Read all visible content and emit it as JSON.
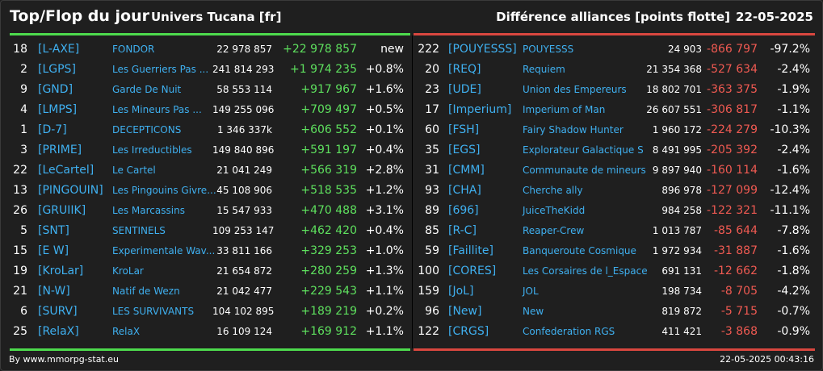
{
  "header": {
    "title": "Top/Flop du jour",
    "universe": "Univers Tucana [fr]",
    "ranking_label": "Différence alliances [points flotte]",
    "date": "22-05-2025"
  },
  "colors": {
    "positive": "#5ee05e",
    "negative": "#f05a52",
    "link": "#3fb0f0",
    "top_bar": "#4ddb4d",
    "flop_bar": "#d9473f",
    "background": "#1f1f1f"
  },
  "top": [
    {
      "rank": "18",
      "tag": "[L-AXE]",
      "name": "FONDOR",
      "score": "22 978 857",
      "diff": "+22 978 857",
      "pct": "new"
    },
    {
      "rank": "2",
      "tag": "[LGPS]",
      "name": "Les Guerriers Pas ...",
      "score": "241 814 293",
      "diff": "+1 974 235",
      "pct": "+0.8%"
    },
    {
      "rank": "9",
      "tag": "[GND]",
      "name": "Garde De Nuit",
      "score": "58 553 114",
      "diff": "+917 967",
      "pct": "+1.6%"
    },
    {
      "rank": "4",
      "tag": "[LMPS]",
      "name": "Les Mineurs Pas ...",
      "score": "149 255 096",
      "diff": "+709 497",
      "pct": "+0.5%"
    },
    {
      "rank": "1",
      "tag": "[D-7]",
      "name": "DECEPTICONS",
      "score": "1 346 337k",
      "diff": "+606 552",
      "pct": "+0.1%"
    },
    {
      "rank": "3",
      "tag": "[PRIME]",
      "name": "Les Irreductibles",
      "score": "149 840 896",
      "diff": "+591 197",
      "pct": "+0.4%"
    },
    {
      "rank": "22",
      "tag": "[LeCartel]",
      "name": "Le Cartel",
      "score": "21 041 249",
      "diff": "+566 319",
      "pct": "+2.8%"
    },
    {
      "rank": "13",
      "tag": "[PINGOUIN]",
      "name": "Les Pingouins Givre...",
      "score": "45 108 906",
      "diff": "+518 535",
      "pct": "+1.2%"
    },
    {
      "rank": "26",
      "tag": "[GRUIIK]",
      "name": "Les Marcassins",
      "score": "15 547 933",
      "diff": "+470 488",
      "pct": "+3.1%"
    },
    {
      "rank": "5",
      "tag": "[SNT]",
      "name": "SENTINELS",
      "score": "109 253 147",
      "diff": "+462 420",
      "pct": "+0.4%"
    },
    {
      "rank": "15",
      "tag": "[E W]",
      "name": "Experimentale Wav...",
      "score": "33 811 166",
      "diff": "+329 253",
      "pct": "+1.0%"
    },
    {
      "rank": "19",
      "tag": "[KroLar]",
      "name": "KroLar",
      "score": "21 654 872",
      "diff": "+280 259",
      "pct": "+1.3%"
    },
    {
      "rank": "21",
      "tag": "[N-W]",
      "name": "Natif de Wezn",
      "score": "21 042 477",
      "diff": "+229 543",
      "pct": "+1.1%"
    },
    {
      "rank": "6",
      "tag": "[SURV]",
      "name": "LES SURVIVANTS",
      "score": "104 102 895",
      "diff": "+189 219",
      "pct": "+0.2%"
    },
    {
      "rank": "25",
      "tag": "[RelaX]",
      "name": "RelaX",
      "score": "16 109 124",
      "diff": "+169 912",
      "pct": "+1.1%"
    }
  ],
  "flop": [
    {
      "rank": "222",
      "tag": "[POUYESSS]",
      "name": "POUYESSS",
      "score": "24 903",
      "diff": "-866 797",
      "pct": "-97.2%"
    },
    {
      "rank": "20",
      "tag": "[REQ]",
      "name": "Requiem",
      "score": "21 354 368",
      "diff": "-527 634",
      "pct": "-2.4%"
    },
    {
      "rank": "23",
      "tag": "[UDE]",
      "name": "Union des Empereurs",
      "score": "18 802 701",
      "diff": "-363 375",
      "pct": "-1.9%"
    },
    {
      "rank": "17",
      "tag": "[Imperium]",
      "name": "Imperium of Man",
      "score": "26 607 551",
      "diff": "-306 817",
      "pct": "-1.1%"
    },
    {
      "rank": "60",
      "tag": "[FSH]",
      "name": "Fairy Shadow Hunter",
      "score": "1 960 172",
      "diff": "-224 279",
      "pct": "-10.3%"
    },
    {
      "rank": "35",
      "tag": "[EGS]",
      "name": "Explorateur Galactique S",
      "score": "8 491 995",
      "diff": "-205 392",
      "pct": "-2.4%"
    },
    {
      "rank": "31",
      "tag": "[CMM]",
      "name": "Communaute de mineurs",
      "score": "9 897 940",
      "diff": "-160 114",
      "pct": "-1.6%"
    },
    {
      "rank": "93",
      "tag": "[CHA]",
      "name": "Cherche ally",
      "score": "896 978",
      "diff": "-127 099",
      "pct": "-12.4%"
    },
    {
      "rank": "89",
      "tag": "[696]",
      "name": "JuiceTheKidd",
      "score": "984 258",
      "diff": "-122 321",
      "pct": "-11.1%"
    },
    {
      "rank": "85",
      "tag": "[R-C]",
      "name": "Reaper-Crew",
      "score": "1 013 787",
      "diff": "-85 644",
      "pct": "-7.8%"
    },
    {
      "rank": "59",
      "tag": "[Faillite]",
      "name": "Banqueroute Cosmique",
      "score": "1 972 934",
      "diff": "-31 887",
      "pct": "-1.6%"
    },
    {
      "rank": "100",
      "tag": "[CORES]",
      "name": "Les Corsaires de l_Espace",
      "score": "691 131",
      "diff": "-12 662",
      "pct": "-1.8%"
    },
    {
      "rank": "159",
      "tag": "[JoL]",
      "name": "JOL",
      "score": "198 734",
      "diff": "-8 705",
      "pct": "-4.2%"
    },
    {
      "rank": "96",
      "tag": "[New]",
      "name": "New",
      "score": "819 872",
      "diff": "-5 715",
      "pct": "-0.7%"
    },
    {
      "rank": "122",
      "tag": "[CRGS]",
      "name": "Confederation RGS",
      "score": "411 421",
      "diff": "-3 868",
      "pct": "-0.9%"
    }
  ],
  "footer": {
    "credit": "By www.mmorpg-stat.eu",
    "timestamp": "22-05-2025 00:43:16"
  }
}
